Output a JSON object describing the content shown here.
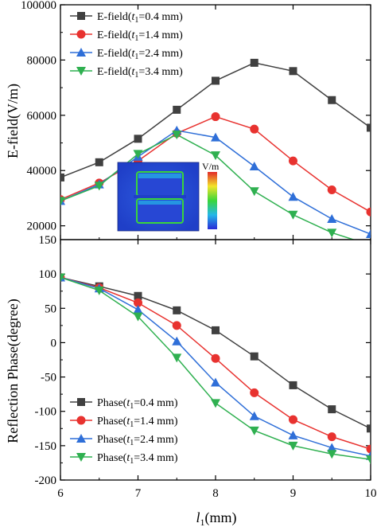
{
  "chart_data": [
    {
      "type": "line",
      "panel": "top",
      "ylabel": "E-field(V/m)",
      "xlim": [
        6,
        10
      ],
      "ylim": [
        15000,
        100000
      ],
      "y_ticks": [
        20000,
        40000,
        60000,
        80000,
        100000
      ],
      "y_tick_labels": [
        "20000",
        "40000",
        "60000",
        "80000",
        "100000"
      ],
      "bottom_label": "150",
      "x": [
        6,
        6.5,
        7,
        7.5,
        8,
        8.5,
        9,
        9.5,
        10
      ],
      "legend_position": "top-left",
      "series": [
        {
          "name_prefix": "E-field(",
          "name_var": "t",
          "name_sub": "1",
          "name_suffix": "=0.4 mm)",
          "color": "#404040",
          "marker": "square",
          "values": [
            37500,
            43000,
            51500,
            62000,
            72500,
            79000,
            76000,
            65500,
            55500
          ]
        },
        {
          "name_prefix": "E-field(",
          "name_var": "t",
          "name_sub": "1",
          "name_suffix": "=1.4 mm)",
          "color": "#e8322f",
          "marker": "circle",
          "values": [
            29500,
            35500,
            43500,
            53500,
            59500,
            55000,
            43500,
            33000,
            25000
          ]
        },
        {
          "name_prefix": "E-field(",
          "name_var": "t",
          "name_sub": "1",
          "name_suffix": "=2.4 mm)",
          "color": "#2f6fd8",
          "marker": "triangle-up",
          "values": [
            29000,
            35000,
            45000,
            54500,
            52000,
            41500,
            30500,
            22500,
            17000
          ]
        },
        {
          "name_prefix": "E-field(",
          "name_var": "t",
          "name_sub": "1",
          "name_suffix": "=3.4 mm)",
          "color": "#2fb050",
          "marker": "triangle-down",
          "values": [
            29000,
            34500,
            46000,
            53000,
            45500,
            32500,
            24000,
            17500,
            13000
          ]
        }
      ],
      "inset": {
        "colorbar_label": "V/m"
      }
    },
    {
      "type": "line",
      "panel": "bottom",
      "ylabel": "Reflection Phase(degree)",
      "xlabel_var": "l",
      "xlabel_sub": "1",
      "xlabel_unit": "(mm)",
      "xlim": [
        6,
        10
      ],
      "ylim": [
        -200,
        150
      ],
      "x_ticks": [
        6,
        7,
        8,
        9,
        10
      ],
      "x_tick_labels": [
        "6",
        "7",
        "8",
        "9",
        "10"
      ],
      "y_ticks": [
        -200,
        -150,
        -100,
        -50,
        0,
        50,
        100
      ],
      "y_tick_labels": [
        "-200",
        "-150",
        "-100",
        "-50",
        "0",
        "50",
        "100"
      ],
      "x": [
        6,
        6.5,
        7,
        7.5,
        8,
        8.5,
        9,
        9.5,
        10
      ],
      "legend_position": "bottom-left",
      "series": [
        {
          "name_prefix": "Phase(",
          "name_var": "t",
          "name_sub": "1",
          "name_suffix": "=0.4 mm)",
          "color": "#404040",
          "marker": "square",
          "values": [
            95,
            82,
            68,
            47,
            18,
            -20,
            -62,
            -97,
            -125
          ]
        },
        {
          "name_prefix": "Phase(",
          "name_var": "t",
          "name_sub": "1",
          "name_suffix": "=1.4 mm)",
          "color": "#e8322f",
          "marker": "circle",
          "values": [
            95,
            80,
            58,
            25,
            -23,
            -73,
            -112,
            -137,
            -155
          ]
        },
        {
          "name_prefix": "Phase(",
          "name_var": "t",
          "name_sub": "1",
          "name_suffix": "=2.4 mm)",
          "color": "#2f6fd8",
          "marker": "triangle-up",
          "values": [
            95,
            79,
            48,
            2,
            -58,
            -107,
            -135,
            -153,
            -165
          ]
        },
        {
          "name_prefix": "Phase(",
          "name_var": "t",
          "name_sub": "1",
          "name_suffix": "=3.4 mm)",
          "color": "#2fb050",
          "marker": "triangle-down",
          "values": [
            95,
            76,
            38,
            -22,
            -88,
            -128,
            -150,
            -162,
            -170
          ]
        }
      ]
    }
  ]
}
